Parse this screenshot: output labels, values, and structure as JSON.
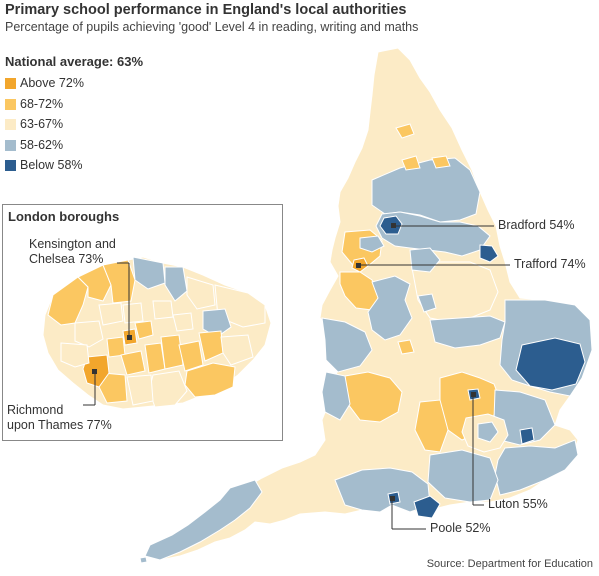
{
  "title": "Primary school performance in England's local authorities",
  "subtitle": "Percentage of pupils achieving 'good' Level 4 in reading, writing and maths",
  "national_average": "National average: 63%",
  "legend": [
    {
      "label": "Above 72%",
      "color": "#f2a62c"
    },
    {
      "label": "68-72%",
      "color": "#fbc761"
    },
    {
      "label": "63-67%",
      "color": "#fcebc6"
    },
    {
      "label": "58-62%",
      "color": "#a4bccd"
    },
    {
      "label": "Below 58%",
      "color": "#2c5d8f"
    }
  ],
  "inset": {
    "title": "London boroughs",
    "callouts": {
      "kensington": [
        "Kensington and",
        "Chelsea 73%"
      ],
      "richmond": [
        "Richmond",
        "upon Thames 77%"
      ]
    }
  },
  "callouts": {
    "bradford": "Bradford 54%",
    "trafford": "Trafford 74%",
    "luton": "Luton 55%",
    "poole": "Poole 52%"
  },
  "source": "Source: Department for Education"
}
